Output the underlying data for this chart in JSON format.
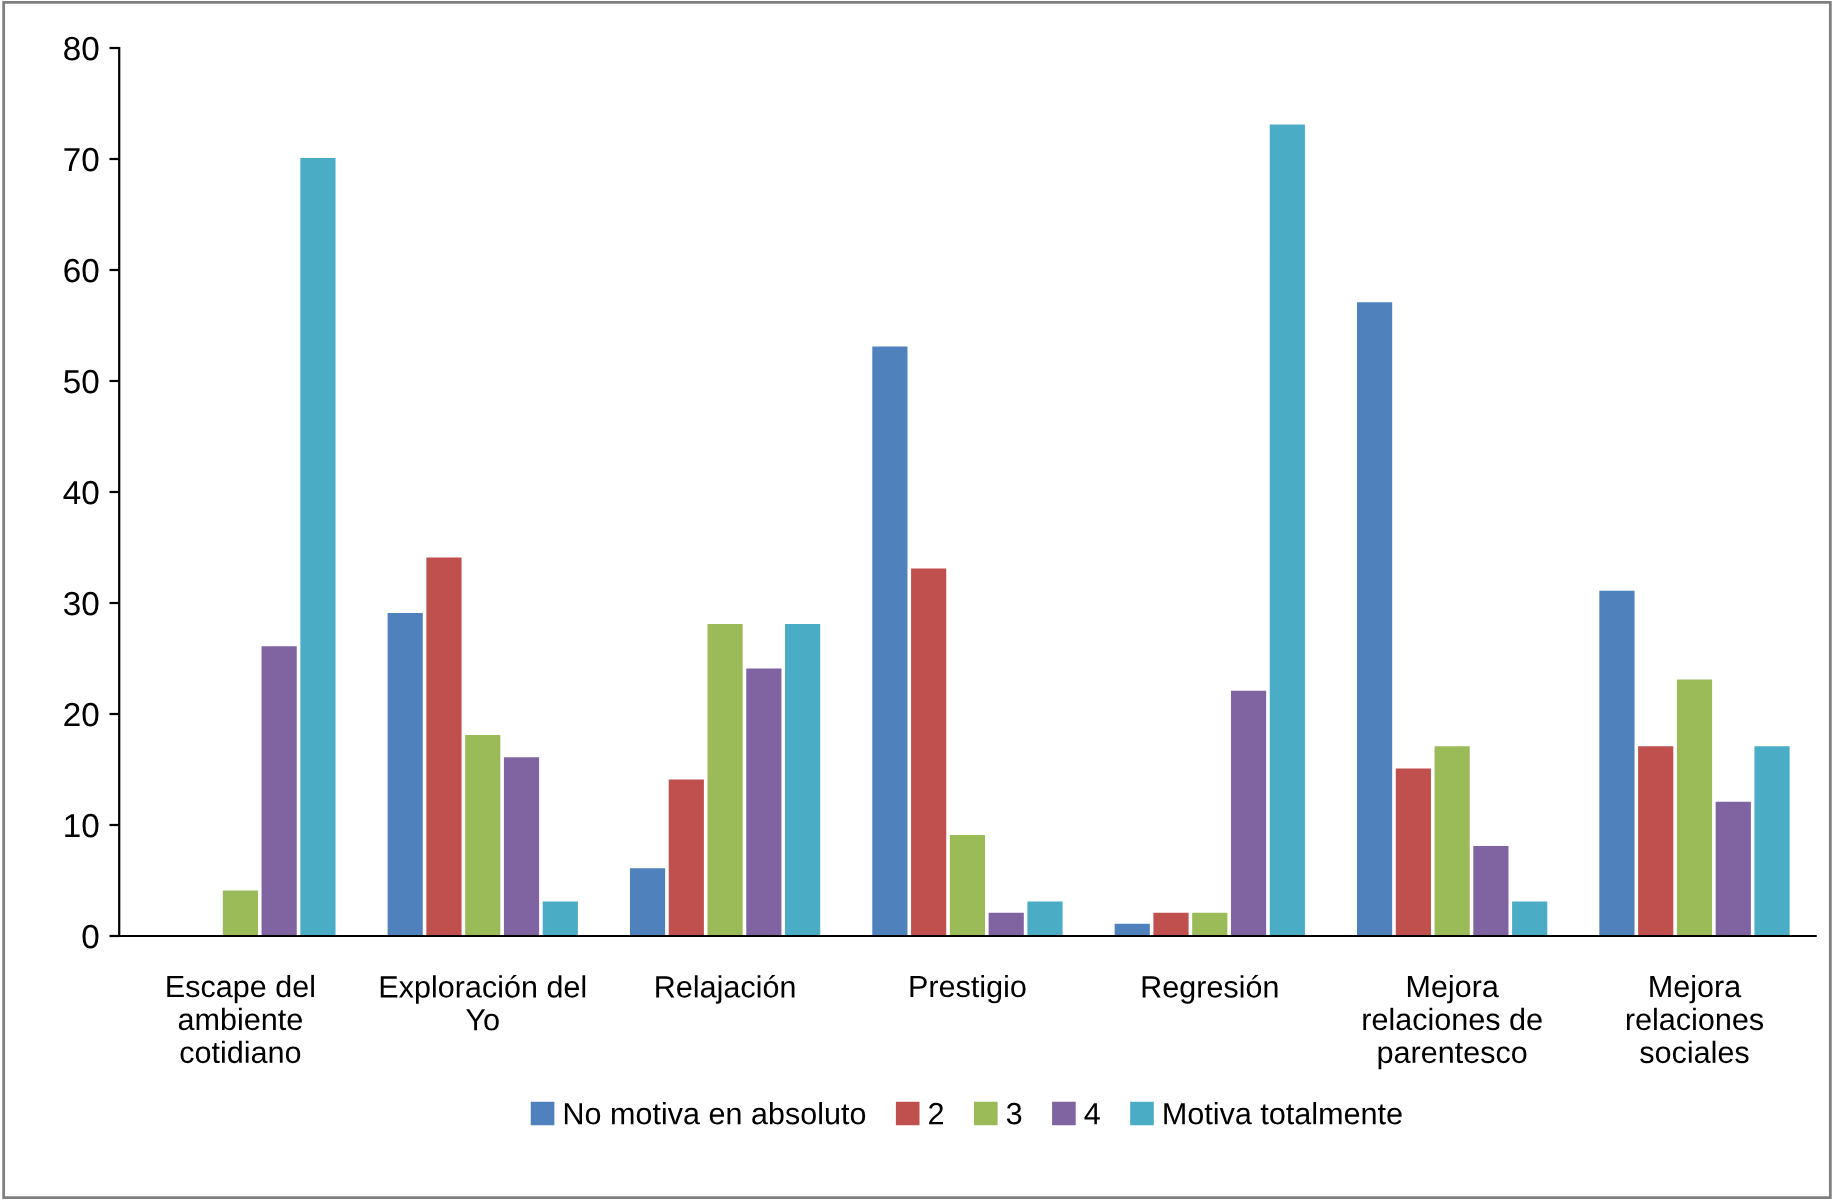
{
  "chart_data": {
    "type": "bar",
    "categories": [
      "Escape del\nambiente\ncotidiano",
      "Exploración del\nYo",
      "Relajación",
      "Prestigio",
      "Regresión",
      "Mejora\nrelaciones de\nparentesco",
      "Mejora\nrelaciones\nsociales"
    ],
    "series": [
      {
        "name": "No motiva en absoluto",
        "color": "#4f81bd",
        "values": [
          0,
          29,
          6,
          53,
          1,
          57,
          31
        ]
      },
      {
        "name": "2",
        "color": "#c0504d",
        "values": [
          0,
          34,
          14,
          33,
          2,
          15,
          17
        ]
      },
      {
        "name": "3",
        "color": "#9bbb59",
        "values": [
          4,
          18,
          28,
          9,
          2,
          17,
          23
        ]
      },
      {
        "name": "4",
        "color": "#8064a2",
        "values": [
          26,
          16,
          24,
          2,
          22,
          8,
          12
        ]
      },
      {
        "name": "Motiva totalmente",
        "color": "#4bacc6",
        "values": [
          70,
          3,
          28,
          3,
          73,
          3,
          17
        ]
      }
    ],
    "ylim": [
      0,
      80
    ],
    "yticks": [
      0,
      10,
      20,
      30,
      40,
      50,
      60,
      70,
      80
    ],
    "grid": false,
    "legend": "bottom"
  }
}
